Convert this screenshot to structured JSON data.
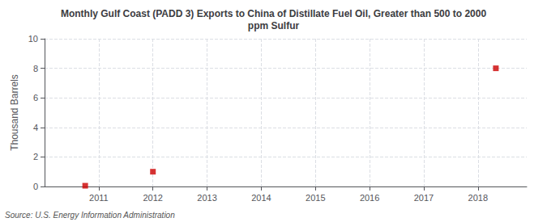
{
  "chart_data": {
    "type": "scatter",
    "title": "Monthly Gulf Coast (PADD 3) Exports to China of Distillate Fuel Oil, Greater than 500 to 2000\nppm Sulfur",
    "ylabel": "Thousand Barrels",
    "annotation": "Source: U.S. Energy Information Administration",
    "x": [
      2010.75,
      2012.0,
      2018.33
    ],
    "values": [
      0.05,
      1.0,
      8.0
    ],
    "color": "#cc0000",
    "marker": "square",
    "xlim": [
      2010.0,
      2018.9
    ],
    "xticks": [
      2011,
      2012,
      2013,
      2014,
      2015,
      2016,
      2017,
      2018
    ],
    "ylim": [
      0,
      10
    ],
    "yticks": [
      0,
      2,
      4,
      6,
      8,
      10
    ],
    "grid": true
  }
}
